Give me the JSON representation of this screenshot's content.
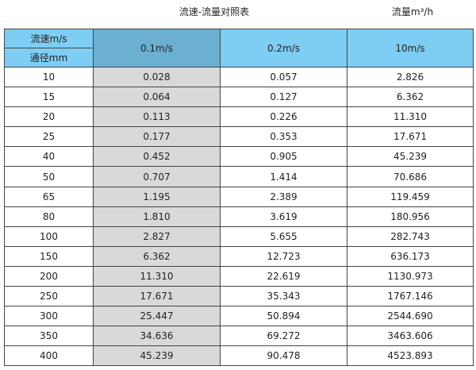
{
  "title": "流速-流量对照表",
  "unit_label": "流量m³/h",
  "colors": {
    "header": "#7ecdf2",
    "header_highlight": "#6bb0d2",
    "shaded_column": "#d9d9d9"
  },
  "table": {
    "corner_top": "流速m/s",
    "corner_bottom": "通径mm",
    "columns": [
      "0.1m/s",
      "0.2m/s",
      "10m/s"
    ],
    "rows": [
      [
        "10",
        "0.028",
        "0.057",
        "2.826"
      ],
      [
        "15",
        "0.064",
        "0.127",
        "6.362"
      ],
      [
        "20",
        "0.113",
        "0.226",
        "11.310"
      ],
      [
        "25",
        "0.177",
        "0.353",
        "17.671"
      ],
      [
        "40",
        "0.452",
        "0.905",
        "45.239"
      ],
      [
        "50",
        "0.707",
        "1.414",
        "70.686"
      ],
      [
        "65",
        "1.195",
        "2.389",
        "119.459"
      ],
      [
        "80",
        "1.810",
        "3.619",
        "180.956"
      ],
      [
        "100",
        "2.827",
        "5.655",
        "282.743"
      ],
      [
        "150",
        "6.362",
        "12.723",
        "636.173"
      ],
      [
        "200",
        "11.310",
        "22.619",
        "1130.973"
      ],
      [
        "250",
        "17.671",
        "35.343",
        "1767.146"
      ],
      [
        "300",
        "25.447",
        "50.894",
        "2544.690"
      ],
      [
        "350",
        "34.636",
        "69.272",
        "3463.606"
      ],
      [
        "400",
        "45.239",
        "90.478",
        "4523.893"
      ]
    ]
  }
}
